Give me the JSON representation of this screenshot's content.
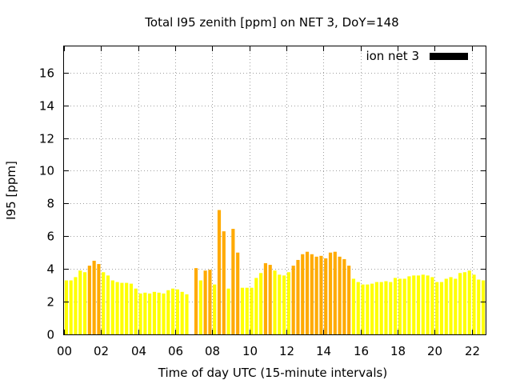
{
  "chart_data": {
    "type": "bar",
    "title": "Total I95 zenith [ppm] on NET 3, DoY=148",
    "xlabel": "Time of day UTC (15-minute intervals)",
    "ylabel": "I95 [ppm]",
    "xlim": [
      0,
      22.75
    ],
    "ylim": [
      0,
      17.6
    ],
    "x_ticks": [
      0,
      2,
      4,
      6,
      8,
      10,
      12,
      14,
      16,
      18,
      20,
      22
    ],
    "x_tick_labels": [
      "00",
      "02",
      "04",
      "06",
      "08",
      "10",
      "12",
      "14",
      "16",
      "18",
      "20",
      "22"
    ],
    "y_ticks": [
      0,
      2,
      4,
      6,
      8,
      10,
      12,
      14,
      16
    ],
    "y_tick_labels": [
      "0",
      "2",
      "4",
      "6",
      "8",
      "10",
      "12",
      "14",
      "16"
    ],
    "grid": true,
    "legend": {
      "position": "top-right",
      "entries": [
        {
          "label": "ion net 3",
          "color": "#000000"
        }
      ]
    },
    "colors": {
      "low": "#ffff00",
      "mid": "#ffff33",
      "high": "#ffaa00",
      "frame": "#000000"
    },
    "bar_width_hours": 0.25,
    "series": [
      {
        "values": [
          3.3,
          3.3,
          3.5,
          3.9,
          3.8,
          4.2,
          4.5,
          4.3,
          3.8,
          3.6,
          3.3,
          3.2,
          3.15,
          3.15,
          3.1,
          2.8,
          2.5,
          2.55,
          2.5,
          2.6,
          2.55,
          2.5,
          2.7,
          2.8,
          2.75,
          2.6,
          2.45,
          null,
          4.05,
          3.3,
          3.9,
          3.95,
          3.05,
          7.6,
          6.3,
          2.8,
          6.45,
          5.0,
          2.85,
          2.85,
          2.85,
          3.45,
          3.75,
          4.35,
          4.25,
          3.9,
          3.65,
          3.6,
          3.8,
          4.2,
          4.55,
          4.9,
          5.05,
          4.9,
          4.75,
          4.8,
          4.65,
          5.0,
          5.05,
          4.75,
          4.6,
          4.2,
          3.4,
          3.2,
          3.05,
          3.05,
          3.1,
          3.2,
          3.2,
          3.25,
          3.2,
          3.45,
          3.4,
          3.4,
          3.55,
          3.6,
          3.6,
          3.65,
          3.6,
          3.5,
          3.2,
          3.2,
          3.4,
          3.5,
          3.4,
          3.75,
          3.8,
          3.9,
          3.65,
          3.35,
          3.3
        ],
        "levels": [
          "low",
          "low",
          "low",
          "low",
          "low",
          "high",
          "high",
          "high",
          "low",
          "low",
          "low",
          "low",
          "low",
          "low",
          "low",
          "low",
          "low",
          "low",
          "low",
          "low",
          "low",
          "low",
          "low",
          "low",
          "low",
          "low",
          "low",
          null,
          "high",
          "low",
          "high",
          "high",
          "low",
          "high",
          "high",
          "low",
          "high",
          "high",
          "low",
          "low",
          "low",
          "low",
          "low",
          "high",
          "high",
          "low",
          "low",
          "low",
          "low",
          "high",
          "high",
          "high",
          "high",
          "high",
          "high",
          "high",
          "high",
          "high",
          "high",
          "high",
          "high",
          "high",
          "low",
          "low",
          "low",
          "low",
          "low",
          "low",
          "low",
          "low",
          "low",
          "low",
          "low",
          "low",
          "low",
          "low",
          "low",
          "low",
          "low",
          "low",
          "low",
          "low",
          "low",
          "low",
          "low",
          "low",
          "low",
          "low",
          "low",
          "low",
          "low"
        ]
      }
    ]
  }
}
